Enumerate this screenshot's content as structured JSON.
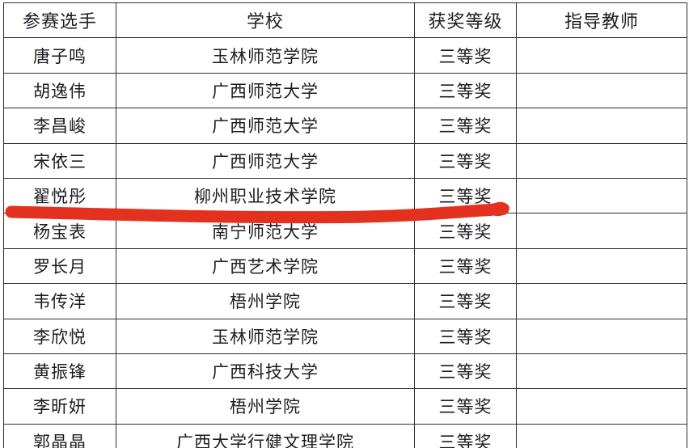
{
  "document": {
    "background_color": "#ffffff",
    "border_color": "#2e2e33",
    "text_color": "#1c1c24"
  },
  "annotation": {
    "kind": "hand-drawn-marker-stroke",
    "color": "#e3301f",
    "marked_row_contestant": "翟悦彤",
    "description": "red marker line drawn across the table under the 翟悦彤 / 柳州职业技术学院 row, spanning from the left edge to the 获奖等级 column"
  },
  "table": {
    "columns": [
      {
        "key": "contestant",
        "label": "参赛选手"
      },
      {
        "key": "school",
        "label": "学校"
      },
      {
        "key": "award",
        "label": "获奖等级"
      },
      {
        "key": "advisor",
        "label": "指导教师"
      }
    ],
    "rows": [
      {
        "contestant": "唐子鸣",
        "school": "玉林师范学院",
        "award": "三等奖",
        "advisor": ""
      },
      {
        "contestant": "胡逸伟",
        "school": "广西师范大学",
        "award": "三等奖",
        "advisor": ""
      },
      {
        "contestant": "李昌峻",
        "school": "广西师范大学",
        "award": "三等奖",
        "advisor": ""
      },
      {
        "contestant": "宋依三",
        "school": "广西师范大学",
        "award": "三等奖",
        "advisor": ""
      },
      {
        "contestant": "翟悦彤",
        "school": "柳州职业技术学院",
        "award": "三等奖",
        "advisor": ""
      },
      {
        "contestant": "杨宝表",
        "school": "南宁师范大学",
        "award": "三等奖",
        "advisor": ""
      },
      {
        "contestant": "罗长月",
        "school": "广西艺术学院",
        "award": "三等奖",
        "advisor": ""
      },
      {
        "contestant": "韦传洋",
        "school": "梧州学院",
        "award": "三等奖",
        "advisor": ""
      },
      {
        "contestant": "李欣悦",
        "school": "玉林师范学院",
        "award": "三等奖",
        "advisor": ""
      },
      {
        "contestant": "黄振锋",
        "school": "广西科技大学",
        "award": "三等奖",
        "advisor": ""
      },
      {
        "contestant": "李昕妍",
        "school": "梧州学院",
        "award": "三等奖",
        "advisor": ""
      },
      {
        "contestant": "郭晶晶",
        "school": "广西大学行健文理学院",
        "award": "三等奖",
        "advisor": ""
      }
    ]
  }
}
